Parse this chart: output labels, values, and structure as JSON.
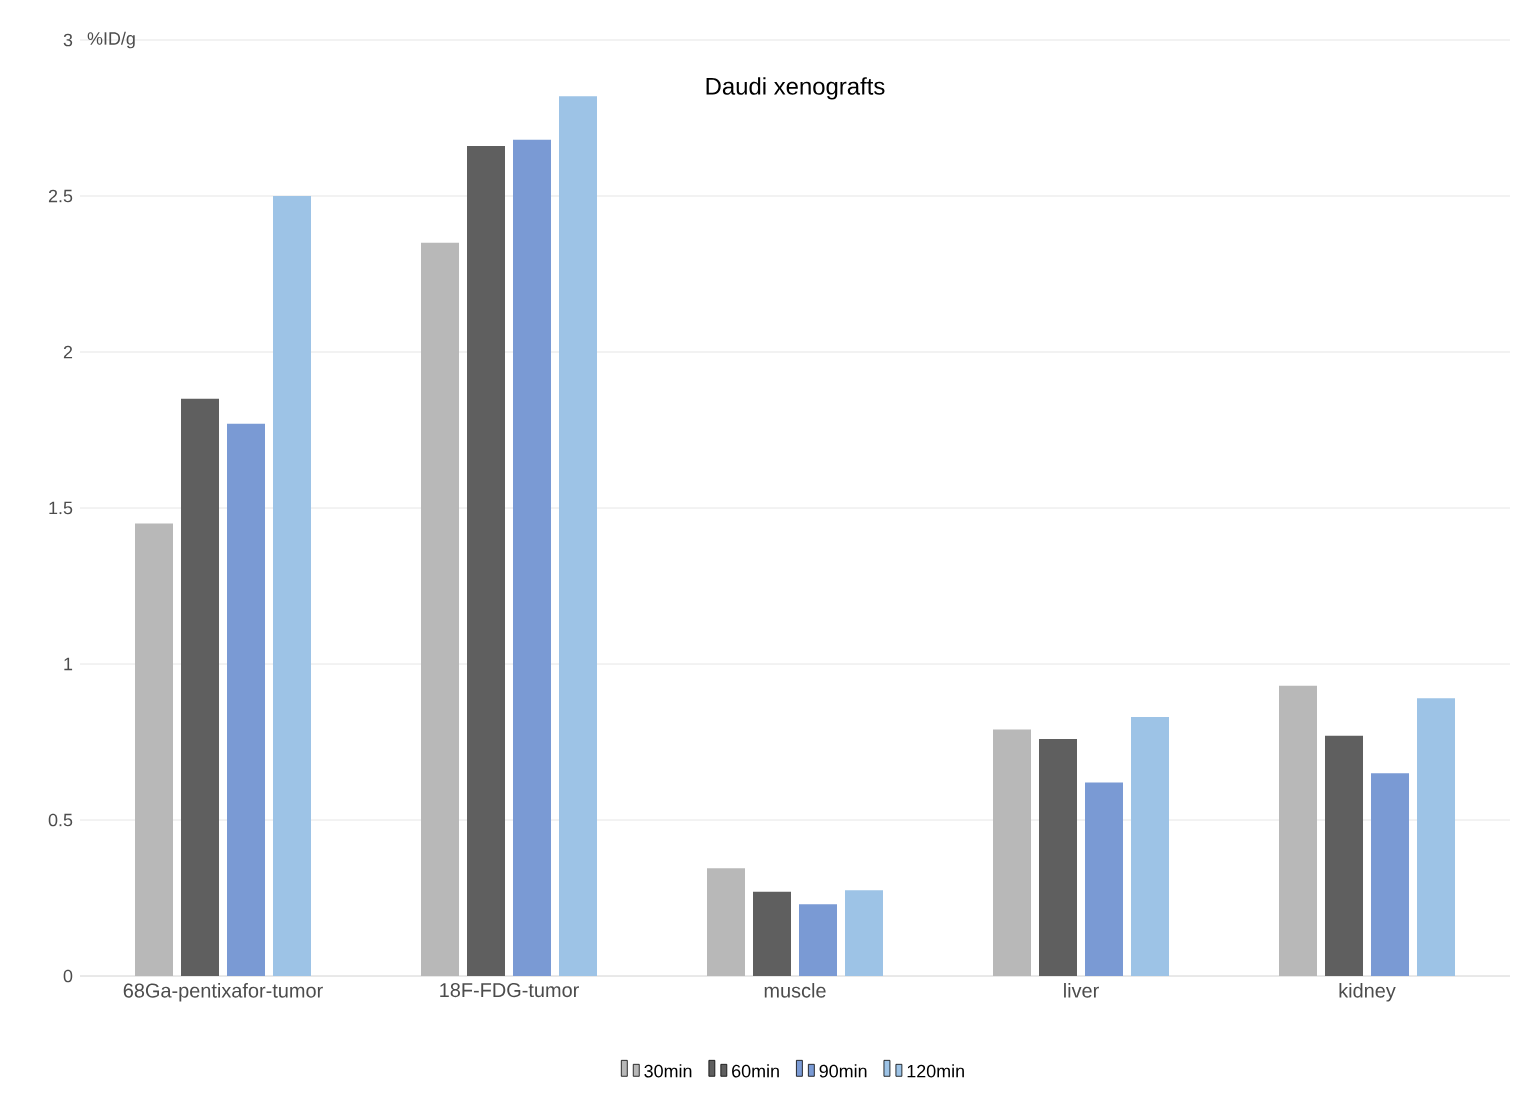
{
  "chart_data": {
    "type": "bar",
    "title": "Daudi xenografts",
    "ylabel": "%ID/g",
    "categories": [
      "68Ga-pentixafor-tumor",
      "18F-FDG-tumor",
      "muscle",
      "liver",
      "kidney"
    ],
    "series": [
      {
        "name": "30min",
        "color": "#b8b8b8",
        "values": [
          1.45,
          2.35,
          0.345,
          0.79,
          0.93
        ]
      },
      {
        "name": "60min",
        "color": "#5f5f5f",
        "values": [
          1.85,
          2.66,
          0.27,
          0.76,
          0.77
        ]
      },
      {
        "name": "90min",
        "color": "#7a9ad4",
        "values": [
          1.77,
          2.68,
          0.23,
          0.62,
          0.65
        ]
      },
      {
        "name": "120min",
        "color": "#9dc3e6",
        "values": [
          2.5,
          2.82,
          0.275,
          0.83,
          0.89
        ]
      }
    ],
    "ylim": [
      0,
      3
    ],
    "yticks": [
      0,
      0.5,
      1,
      1.5,
      2,
      2.5,
      3
    ],
    "grid": "y",
    "legend": "bottom"
  }
}
